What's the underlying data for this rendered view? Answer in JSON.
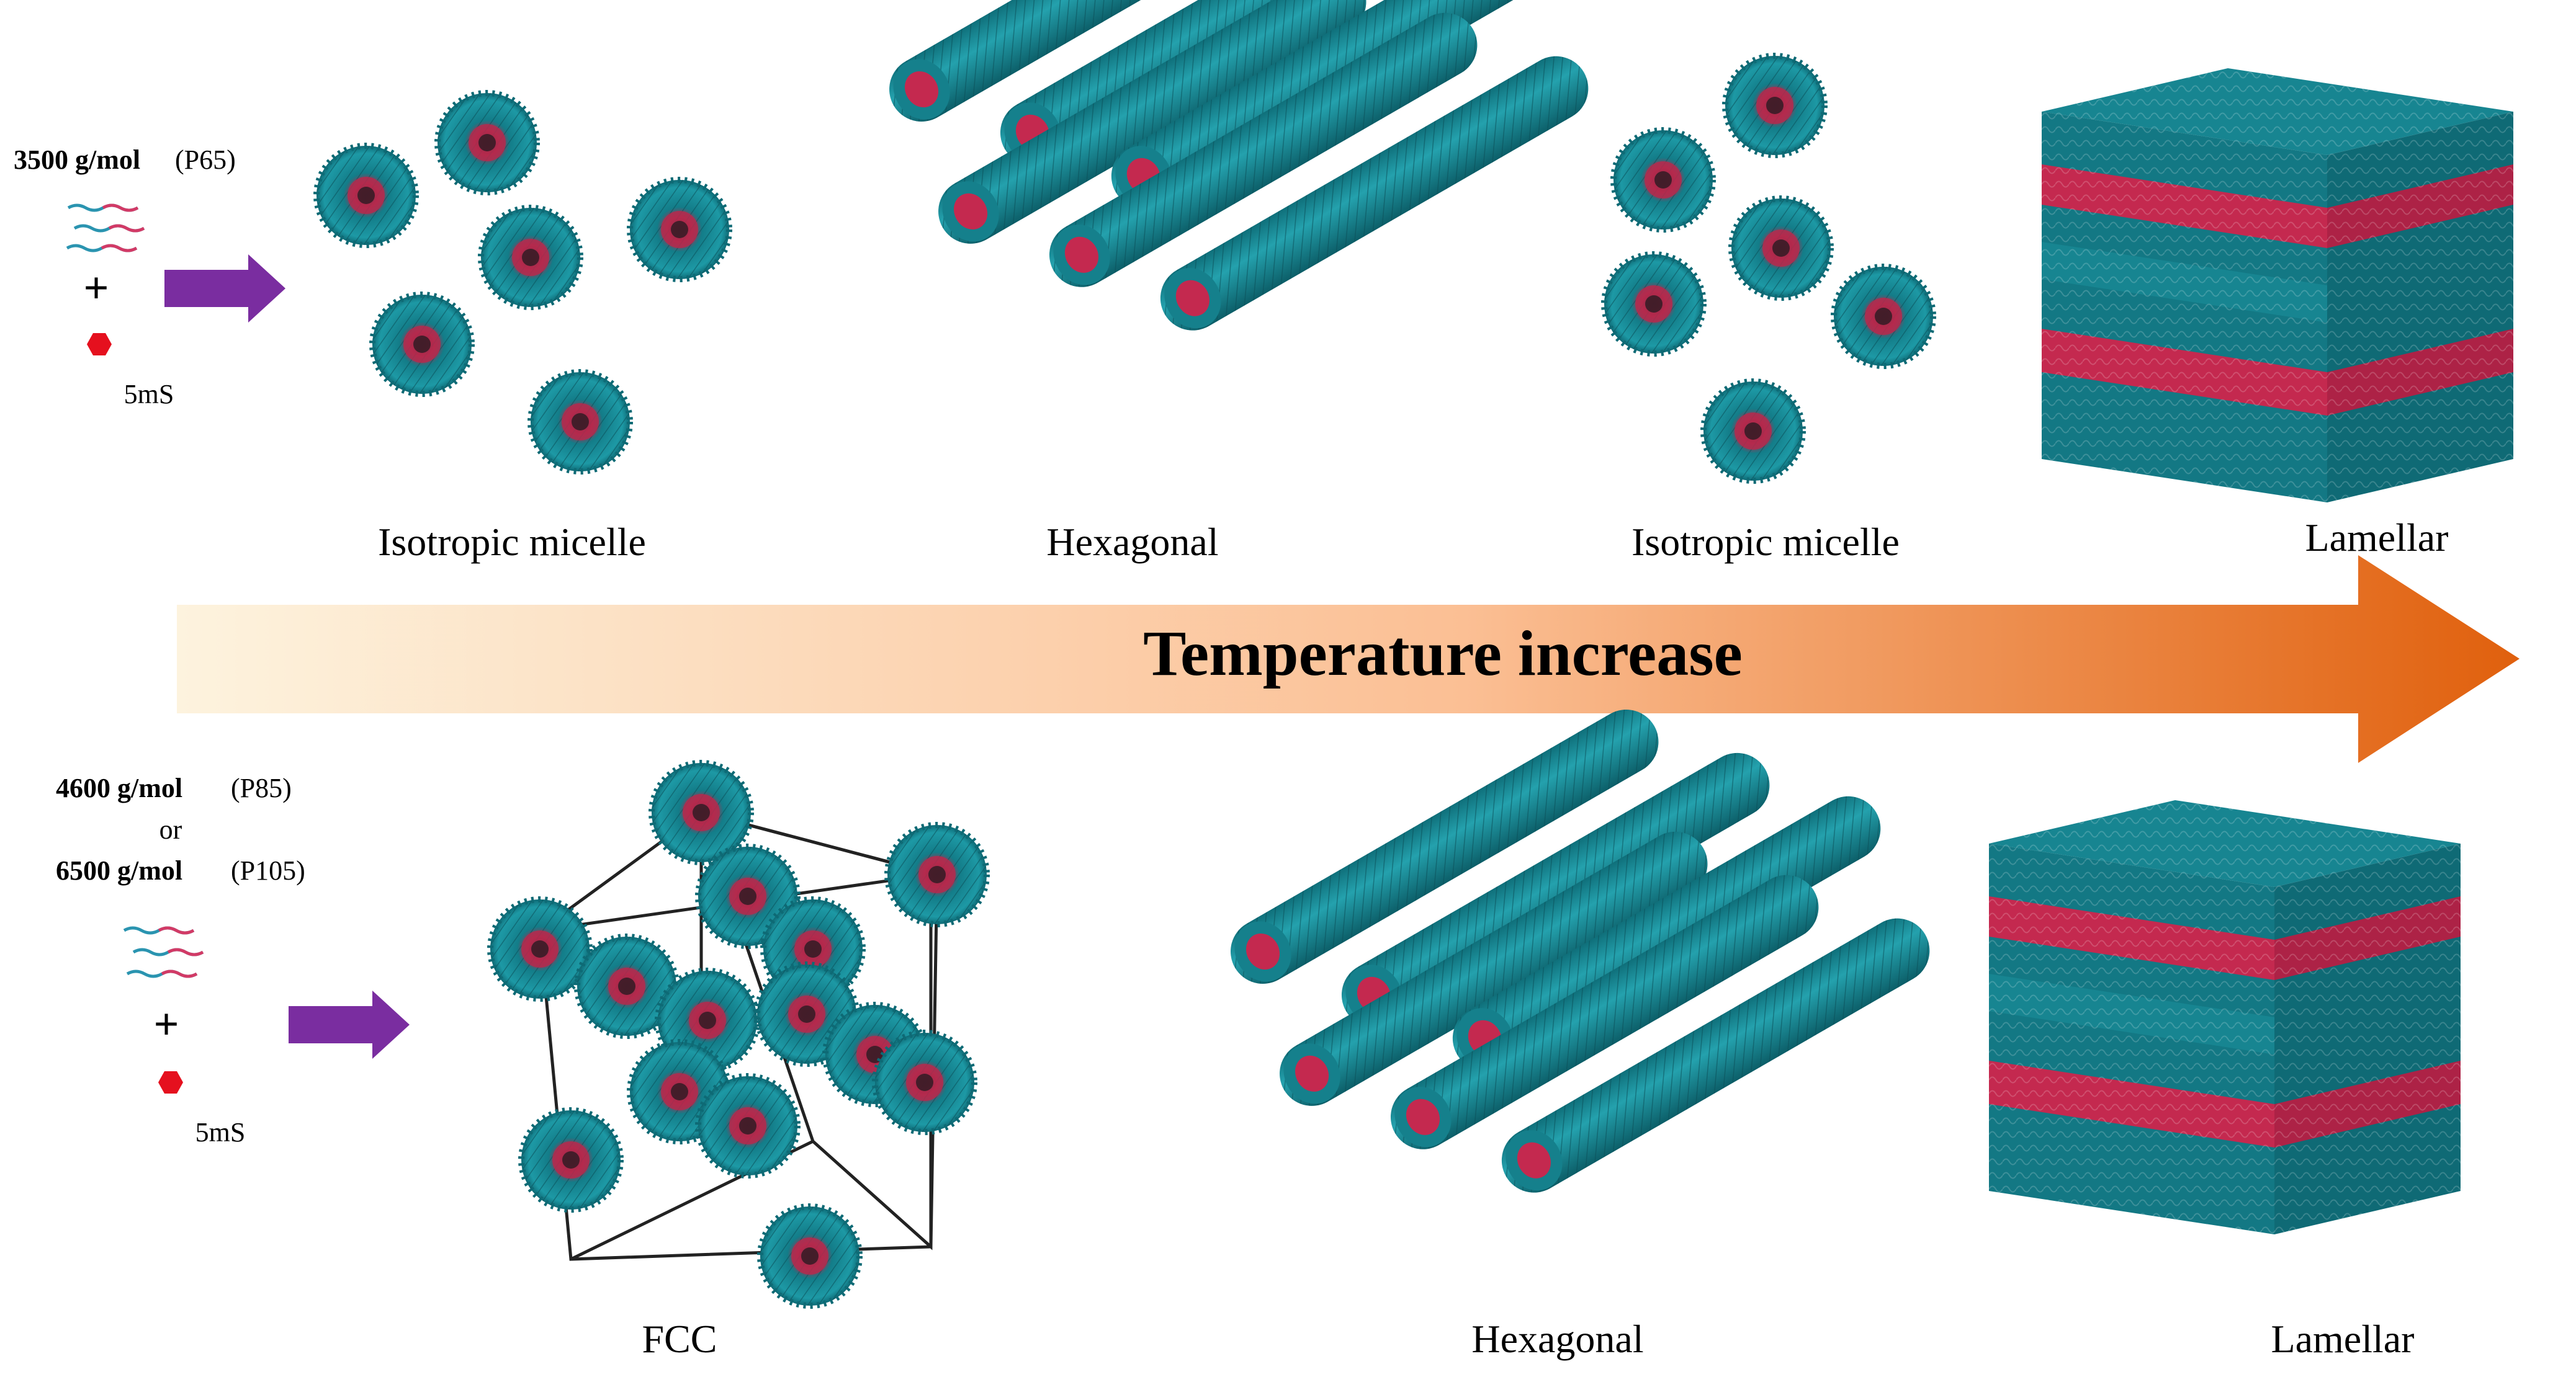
{
  "colors": {
    "shell": "#1a8a96",
    "shell_dark": "#0d5f6b",
    "core": "#c4294f",
    "arrow_start": "#fdf1d8",
    "arrow_end": "#e0600d",
    "process_arrow": "#7a2da0",
    "hexagon": "#e5101e"
  },
  "top_row": {
    "reagent": {
      "mass": "3500 g/mol",
      "code": "(P65)",
      "plus": "+",
      "surfactant": "5mS"
    },
    "phases": [
      {
        "label": "Isotropic micelle"
      },
      {
        "label": "Hexagonal"
      },
      {
        "label": "Isotropic micelle"
      },
      {
        "label": "Lamellar"
      }
    ]
  },
  "temperature_arrow": {
    "label": "Temperature increase"
  },
  "bottom_row": {
    "reagent": {
      "mass1": "4600 g/mol",
      "code1": "(P85)",
      "or": "or",
      "mass2": "6500 g/mol",
      "code2": "(P105)",
      "plus": "+",
      "surfactant": "5mS"
    },
    "phases": [
      {
        "label": "FCC"
      },
      {
        "label": "Hexagonal"
      },
      {
        "label": "Lamellar"
      }
    ]
  }
}
